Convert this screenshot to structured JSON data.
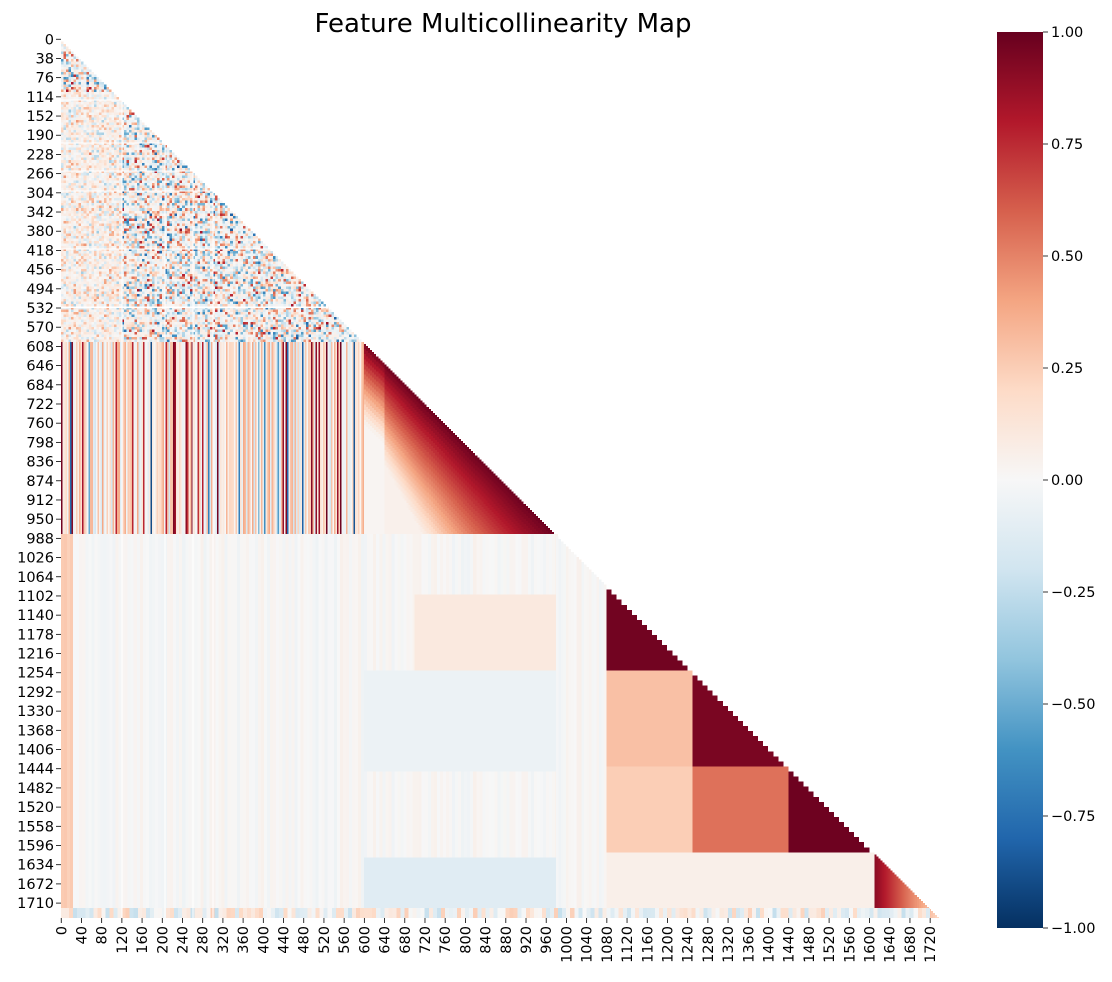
{
  "chart_data": {
    "type": "heatmap",
    "title": "Feature Multicollinearity Map",
    "matrix_size": 1740,
    "mask": "upper-triangle",
    "y_tick_labels": [
      "0",
      "38",
      "76",
      "114",
      "152",
      "190",
      "228",
      "266",
      "304",
      "342",
      "380",
      "418",
      "456",
      "494",
      "532",
      "570",
      "608",
      "646",
      "684",
      "722",
      "760",
      "798",
      "836",
      "874",
      "912",
      "950",
      "988",
      "1026",
      "1064",
      "1102",
      "1140",
      "1178",
      "1216",
      "1254",
      "1292",
      "1330",
      "1368",
      "1406",
      "1444",
      "1482",
      "1520",
      "1558",
      "1596",
      "1634",
      "1672",
      "1710"
    ],
    "x_tick_labels": [
      "0",
      "40",
      "80",
      "120",
      "160",
      "200",
      "240",
      "280",
      "320",
      "360",
      "400",
      "440",
      "480",
      "520",
      "560",
      "600",
      "640",
      "680",
      "720",
      "760",
      "800",
      "840",
      "880",
      "920",
      "960",
      "1000",
      "1040",
      "1080",
      "1120",
      "1160",
      "1200",
      "1240",
      "1280",
      "1320",
      "1360",
      "1400",
      "1440",
      "1480",
      "1520",
      "1560",
      "1600",
      "1640",
      "1680",
      "1720"
    ],
    "colorbar": {
      "colormap": "RdBu_r",
      "vmin": -1.0,
      "vmax": 1.0,
      "tick_values": [
        1.0,
        0.75,
        0.5,
        0.25,
        0.0,
        -0.25,
        -0.5,
        -0.75,
        -1.0
      ],
      "tick_labels": [
        "1.00",
        "0.75",
        "0.50",
        "0.25",
        "0.00",
        "−0.25",
        "−0.50",
        "−0.75",
        "−1.00"
      ],
      "colors": [
        "#053061",
        "#2166ac",
        "#4393c3",
        "#92c5de",
        "#d1e5f0",
        "#f7f7f7",
        "#fddbc7",
        "#f4a582",
        "#d6604d",
        "#b2182b",
        "#67001f"
      ]
    },
    "blocks": [
      {
        "name": "noisy-features",
        "rows": [
          0,
          600
        ],
        "cols": [
          0,
          600
        ],
        "pattern": "noisy",
        "approx_value": 0.0
      },
      {
        "name": "lagged-features-strong",
        "rows": [
          600,
          980
        ],
        "cols": [
          600,
          980
        ],
        "pattern": "near-diagonal high correlation",
        "approx_value": 0.95
      },
      {
        "name": "lagged-vs-noisy",
        "rows": [
          600,
          980
        ],
        "cols": [
          0,
          600
        ],
        "pattern": "vertical stripes",
        "approx_value": 0.2
      },
      {
        "name": "block-1080-1250",
        "rows": [
          1080,
          1250
        ],
        "cols": [
          1080,
          1250
        ],
        "pattern": "solid",
        "approx_value": 0.97
      },
      {
        "name": "block-1250-1440",
        "rows": [
          1250,
          1440
        ],
        "cols": [
          1250,
          1440
        ],
        "pattern": "solid",
        "approx_value": 0.95
      },
      {
        "name": "block-1250-1440-vs-1080-1250",
        "rows": [
          1250,
          1440
        ],
        "cols": [
          1080,
          1250
        ],
        "pattern": "solid",
        "approx_value": 0.3
      },
      {
        "name": "block-1440-1610",
        "rows": [
          1440,
          1610
        ],
        "cols": [
          1440,
          1610
        ],
        "pattern": "solid",
        "approx_value": 0.98
      },
      {
        "name": "block-1440-1610-vs-1250-1440",
        "rows": [
          1440,
          1610
        ],
        "cols": [
          1250,
          1440
        ],
        "pattern": "solid",
        "approx_value": 0.55
      },
      {
        "name": "block-1440-1610-vs-1080-1250",
        "rows": [
          1440,
          1610
        ],
        "cols": [
          1080,
          1250
        ],
        "pattern": "solid",
        "approx_value": 0.25
      },
      {
        "name": "block-1610-1720",
        "rows": [
          1610,
          1720
        ],
        "cols": [
          1610,
          1720
        ],
        "pattern": "gradient",
        "approx_value": 0.75
      }
    ]
  }
}
